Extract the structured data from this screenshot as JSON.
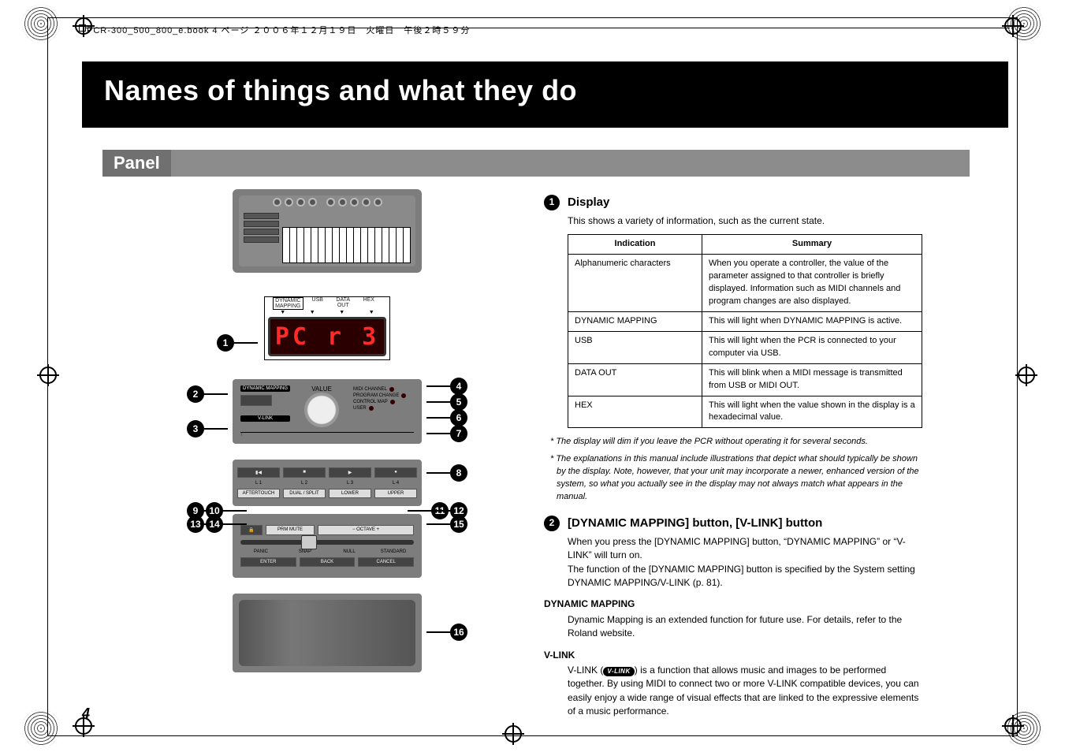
{
  "meta": {
    "header_line": "PCR-300_500_800_e.book  4 ページ  ２００６年１２月１９日　火曜日　午後２時５９分",
    "page_number": "4"
  },
  "title": "Names of things and what they do",
  "section": "Panel",
  "lcd": {
    "labels": [
      "DYNAMIC MAPPING",
      "USB",
      "DATA OUT",
      "HEX"
    ],
    "text": "PC r 3"
  },
  "callouts": [
    "1",
    "2",
    "3",
    "4",
    "5",
    "6",
    "7",
    "8",
    "9",
    "10",
    "11",
    "12",
    "13",
    "14",
    "15",
    "16"
  ],
  "ctrl": {
    "dynamic_mapping": "DYNAMIC MAPPING",
    "value": "VALUE",
    "vlink": "V-LINK",
    "leds": [
      "MIDI CHANNEL",
      "PROGRAM CHANGE",
      "CONTROL MAP",
      "USER"
    ]
  },
  "btn_labels": {
    "row_a": [
      "",
      "",
      "▶",
      ""
    ],
    "row_a_sub": [
      "L 1",
      "L 2",
      "L 3",
      "L 4"
    ],
    "row_b": [
      "AFTERTOUCH",
      "DUAL / SPLIT",
      "LOWER",
      "UPPER"
    ],
    "row_c": [
      "",
      "PRM MUTE",
      "−   OCTAVE   +",
      ""
    ],
    "row_d_sub": [
      "PANIC",
      "SNAP",
      "NULL",
      "STANDARD"
    ],
    "row_e": [
      "ENTER",
      "BACK",
      "CANCEL"
    ]
  },
  "items": [
    {
      "num": "1",
      "title": "Display",
      "intro": "This shows a variety of information, such as the current state.",
      "table": {
        "columns": [
          "Indication",
          "Summary"
        ],
        "rows": [
          [
            "Alphanumeric characters",
            "When you operate a controller, the value of the parameter assigned to that controller is briefly displayed. Information such as MIDI channels and program changes are also displayed."
          ],
          [
            "DYNAMIC MAPPING",
            "This will light when DYNAMIC MAPPING is active."
          ],
          [
            "USB",
            "This will light when the PCR is connected to your computer via USB."
          ],
          [
            "DATA OUT",
            "This will blink when a MIDI message is transmitted from USB or MIDI OUT."
          ],
          [
            "HEX",
            "This will light when the value shown in the display is a hexadecimal value."
          ]
        ]
      },
      "footnotes": [
        "*  The display will dim if you leave the PCR without operating it for several seconds.",
        "*  The explanations in this manual include illustrations that depict what should typically be shown by the display. Note, however, that your unit may incorporate a newer, enhanced version of the system, so what you actually see in the display may not always match what appears in the manual."
      ]
    },
    {
      "num": "2",
      "title": "[DYNAMIC MAPPING] button, [V-LINK] button",
      "paras": [
        "When you press the [DYNAMIC MAPPING] button, “DYNAMIC MAPPING” or “V-LINK” will turn on.",
        "The function of the [DYNAMIC MAPPING] button is specified by the System setting DYNAMIC MAPPING/V-LINK (p. 81)."
      ],
      "sub": [
        {
          "head": "DYNAMIC MAPPING",
          "body": "Dynamic Mapping is an extended function for future use. For details, refer to the Roland website."
        },
        {
          "head": "V-LINK",
          "body_prefix": "V-LINK (",
          "badge": "V-LINK",
          "body_suffix": ") is a function that allows music and images to be performed together. By using MIDI to connect two or more V-LINK compatible devices, you can easily enjoy a wide range of visual effects that are linked to the expressive elements of a music performance."
        }
      ]
    }
  ],
  "colors": {
    "accent_red": "#ff2a2a",
    "panel_grey": "#7d7d7d",
    "section_grey": "#8c8c8c"
  }
}
